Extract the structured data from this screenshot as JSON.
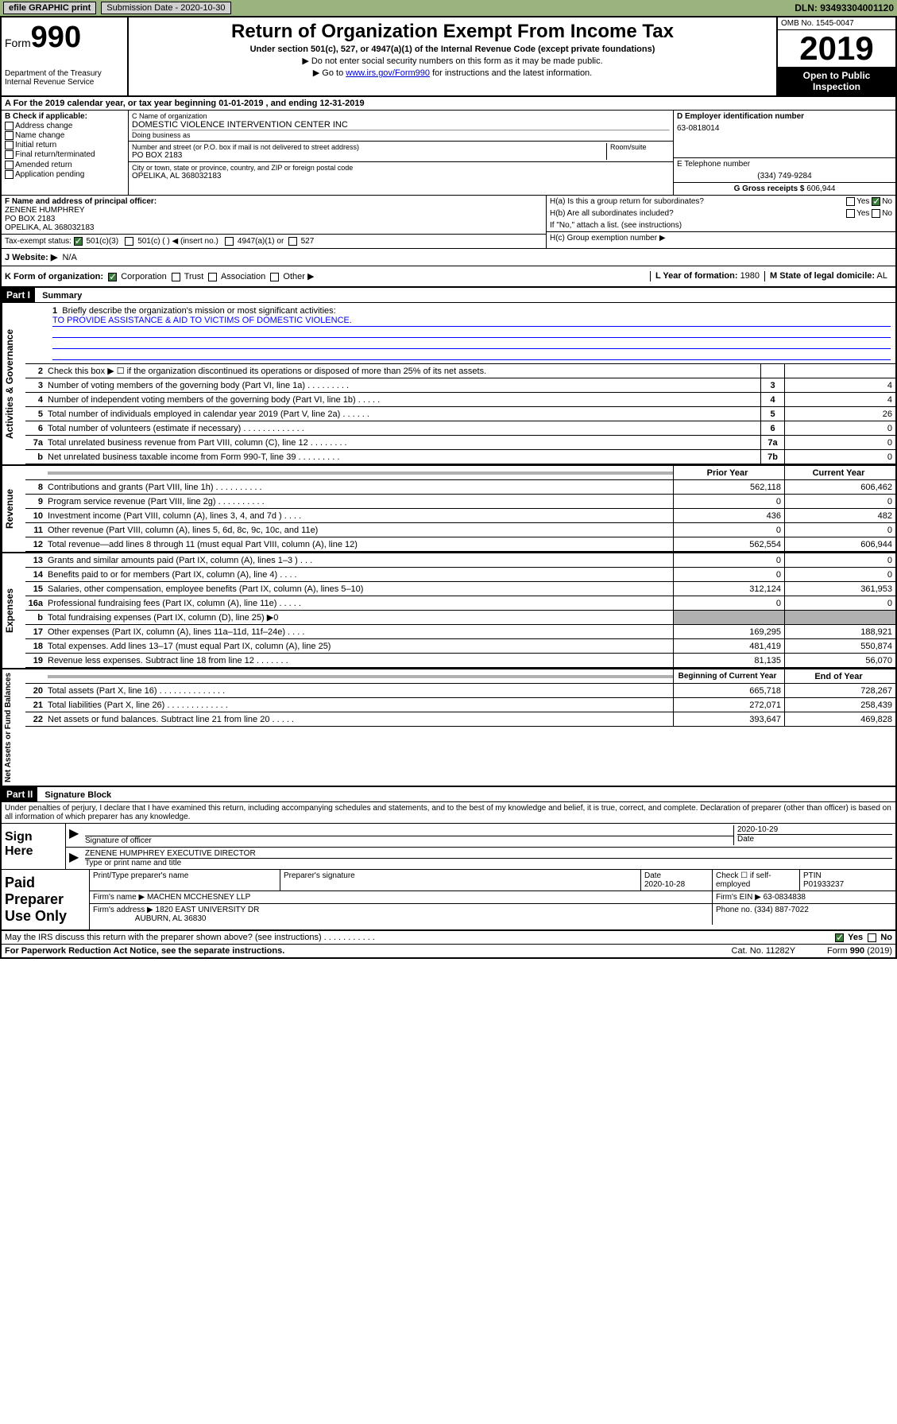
{
  "topbar": {
    "efile": "efile GRAPHIC print",
    "submission": "Submission Date - 2020-10-30",
    "dln": "DLN: 93493304001120"
  },
  "header": {
    "form_label": "Form",
    "form_num": "990",
    "dept": "Department of the Treasury\nInternal Revenue Service",
    "title": "Return of Organization Exempt From Income Tax",
    "subtitle": "Under section 501(c), 527, or 4947(a)(1) of the Internal Revenue Code (except private foundations)",
    "line1": "▶ Do not enter social security numbers on this form as it may be made public.",
    "line2_a": "▶ Go to ",
    "line2_link": "www.irs.gov/Form990",
    "line2_b": " for instructions and the latest information.",
    "omb": "OMB No. 1545-0047",
    "year": "2019",
    "open": "Open to Public Inspection"
  },
  "period": "A For the 2019 calendar year, or tax year beginning 01-01-2019   , and ending 12-31-2019",
  "boxB": {
    "label": "B Check if applicable:",
    "items": [
      "Address change",
      "Name change",
      "Initial return",
      "Final return/terminated",
      "Amended return",
      "Application pending"
    ]
  },
  "boxC": {
    "name_label": "C Name of organization",
    "name": "DOMESTIC VIOLENCE INTERVENTION CENTER INC",
    "dba_label": "Doing business as",
    "addr_label": "Number and street (or P.O. box if mail is not delivered to street address)",
    "room_label": "Room/suite",
    "addr": "PO BOX 2183",
    "city_label": "City or town, state or province, country, and ZIP or foreign postal code",
    "city": "OPELIKA, AL 368032183"
  },
  "boxD": {
    "label": "D Employer identification number",
    "val": "63-0818014"
  },
  "boxE": {
    "label": "E Telephone number",
    "val": "(334) 749-9284"
  },
  "boxG": {
    "label": "G Gross receipts $",
    "val": "606,944"
  },
  "boxF": {
    "label": "F Name and address of principal officer:",
    "name": "ZENENE HUMPHREY",
    "addr1": "PO BOX 2183",
    "addr2": "OPELIKA, AL 368032183"
  },
  "boxH": {
    "a": "H(a)  Is this a group return for subordinates?",
    "b": "H(b)  Are all subordinates included?",
    "note": "If \"No,\" attach a list. (see instructions)",
    "c": "H(c)  Group exemption number ▶"
  },
  "taxStatus": {
    "label": "Tax-exempt status:",
    "o1": "501(c)(3)",
    "o2": "501(c) (  ) ◀ (insert no.)",
    "o3": "4947(a)(1) or",
    "o4": "527"
  },
  "boxJ": {
    "label": "J   Website: ▶",
    "val": "N/A"
  },
  "boxK": {
    "label": "K Form of organization:",
    "o1": "Corporation",
    "o2": "Trust",
    "o3": "Association",
    "o4": "Other ▶"
  },
  "boxL": {
    "label": "L Year of formation:",
    "val": "1980"
  },
  "boxM": {
    "label": "M State of legal domicile:",
    "val": "AL"
  },
  "part1": {
    "hdr": "Part I",
    "title": "Summary"
  },
  "mission": {
    "num": "1",
    "label": "Briefly describe the organization's mission or most significant activities:",
    "text": "TO PROVIDE ASSISTANCE & AID TO VICTIMS OF DOMESTIC VIOLENCE."
  },
  "lines_gov": [
    {
      "n": "2",
      "d": "Check this box ▶ ☐  if the organization discontinued its operations or disposed of more than 25% of its net assets.",
      "b": "",
      "v": ""
    },
    {
      "n": "3",
      "d": "Number of voting members of the governing body (Part VI, line 1a)  .  .  .  .  .  .  .  .  .",
      "b": "3",
      "v": "4"
    },
    {
      "n": "4",
      "d": "Number of independent voting members of the governing body (Part VI, line 1b)  .  .  .  .  .",
      "b": "4",
      "v": "4"
    },
    {
      "n": "5",
      "d": "Total number of individuals employed in calendar year 2019 (Part V, line 2a)  .  .  .  .  .  .",
      "b": "5",
      "v": "26"
    },
    {
      "n": "6",
      "d": "Total number of volunteers (estimate if necessary)  .  .  .  .  .  .  .  .  .  .  .  .  .",
      "b": "6",
      "v": "0"
    },
    {
      "n": "7a",
      "d": "Total unrelated business revenue from Part VIII, column (C), line 12  .  .  .  .  .  .  .  .",
      "b": "7a",
      "v": "0"
    },
    {
      "n": "b",
      "d": "Net unrelated business taxable income from Form 990-T, line 39  .  .  .  .  .  .  .  .  .",
      "b": "7b",
      "v": "0"
    }
  ],
  "year_hdr": {
    "prior": "Prior Year",
    "current": "Current Year"
  },
  "lines_rev": [
    {
      "n": "8",
      "d": "Contributions and grants (Part VIII, line 1h)  .  .  .  .  .  .  .  .  .  .",
      "p": "562,118",
      "c": "606,462"
    },
    {
      "n": "9",
      "d": "Program service revenue (Part VIII, line 2g)  .  .  .  .  .  .  .  .  .  .",
      "p": "0",
      "c": "0"
    },
    {
      "n": "10",
      "d": "Investment income (Part VIII, column (A), lines 3, 4, and 7d )  .  .  .  .",
      "p": "436",
      "c": "482"
    },
    {
      "n": "11",
      "d": "Other revenue (Part VIII, column (A), lines 5, 6d, 8c, 9c, 10c, and 11e)",
      "p": "0",
      "c": "0"
    },
    {
      "n": "12",
      "d": "Total revenue—add lines 8 through 11 (must equal Part VIII, column (A), line 12)",
      "p": "562,554",
      "c": "606,944"
    }
  ],
  "lines_exp": [
    {
      "n": "13",
      "d": "Grants and similar amounts paid (Part IX, column (A), lines 1–3 )  .  .  .",
      "p": "0",
      "c": "0"
    },
    {
      "n": "14",
      "d": "Benefits paid to or for members (Part IX, column (A), line 4)  .  .  .  .",
      "p": "0",
      "c": "0"
    },
    {
      "n": "15",
      "d": "Salaries, other compensation, employee benefits (Part IX, column (A), lines 5–10)",
      "p": "312,124",
      "c": "361,953"
    },
    {
      "n": "16a",
      "d": "Professional fundraising fees (Part IX, column (A), line 11e)  .  .  .  .  .",
      "p": "0",
      "c": "0"
    },
    {
      "n": "b",
      "d": "Total fundraising expenses (Part IX, column (D), line 25) ▶0",
      "p": "",
      "c": "",
      "shaded": true
    },
    {
      "n": "17",
      "d": "Other expenses (Part IX, column (A), lines 11a–11d, 11f–24e)  .  .  .  .",
      "p": "169,295",
      "c": "188,921"
    },
    {
      "n": "18",
      "d": "Total expenses. Add lines 13–17 (must equal Part IX, column (A), line 25)",
      "p": "481,419",
      "c": "550,874"
    },
    {
      "n": "19",
      "d": "Revenue less expenses. Subtract line 18 from line 12  .  .  .  .  .  .  .",
      "p": "81,135",
      "c": "56,070"
    }
  ],
  "net_hdr": {
    "prior": "Beginning of Current Year",
    "current": "End of Year"
  },
  "lines_net": [
    {
      "n": "20",
      "d": "Total assets (Part X, line 16)  .  .  .  .  .  .  .  .  .  .  .  .  .  .",
      "p": "665,718",
      "c": "728,267"
    },
    {
      "n": "21",
      "d": "Total liabilities (Part X, line 26)  .  .  .  .  .  .  .  .  .  .  .  .  .",
      "p": "272,071",
      "c": "258,439"
    },
    {
      "n": "22",
      "d": "Net assets or fund balances. Subtract line 21 from line 20  .  .  .  .  .",
      "p": "393,647",
      "c": "469,828"
    }
  ],
  "side_labels": {
    "gov": "Activities & Governance",
    "rev": "Revenue",
    "exp": "Expenses",
    "net": "Net Assets or Fund Balances"
  },
  "part2": {
    "hdr": "Part II",
    "title": "Signature Block"
  },
  "perjury": "Under penalties of perjury, I declare that I have examined this return, including accompanying schedules and statements, and to the best of my knowledge and belief, it is true, correct, and complete. Declaration of preparer (other than officer) is based on all information of which preparer has any knowledge.",
  "sign": {
    "here": "Sign Here",
    "sig_label": "Signature of officer",
    "date": "2020-10-29",
    "date_label": "Date",
    "name": "ZENENE HUMPHREY EXECUTIVE DIRECTOR",
    "name_label": "Type or print name and title"
  },
  "paid": {
    "label": "Paid Preparer Use Only",
    "h1": "Print/Type preparer's name",
    "h2": "Preparer's signature",
    "h3": "Date",
    "date": "2020-10-28",
    "h4": "Check ☐ if self-employed",
    "h5": "PTIN",
    "ptin": "P01933237",
    "firm_label": "Firm's name    ▶",
    "firm": "MACHEN MCCHESNEY LLP",
    "ein_label": "Firm's EIN ▶",
    "ein": "63-0834838",
    "addr_label": "Firm's address ▶",
    "addr": "1820 EAST UNIVERSITY DR",
    "addr2": "AUBURN, AL  36830",
    "phone_label": "Phone no.",
    "phone": "(334) 887-7022"
  },
  "discuss": "May the IRS discuss this return with the preparer shown above? (see instructions)  .  .  .  .  .  .  .  .  .  .  .",
  "footer": {
    "pra": "For Paperwork Reduction Act Notice, see the separate instructions.",
    "cat": "Cat. No. 11282Y",
    "form": "Form 990 (2019)"
  },
  "yn": {
    "yes": "Yes",
    "no": "No"
  }
}
